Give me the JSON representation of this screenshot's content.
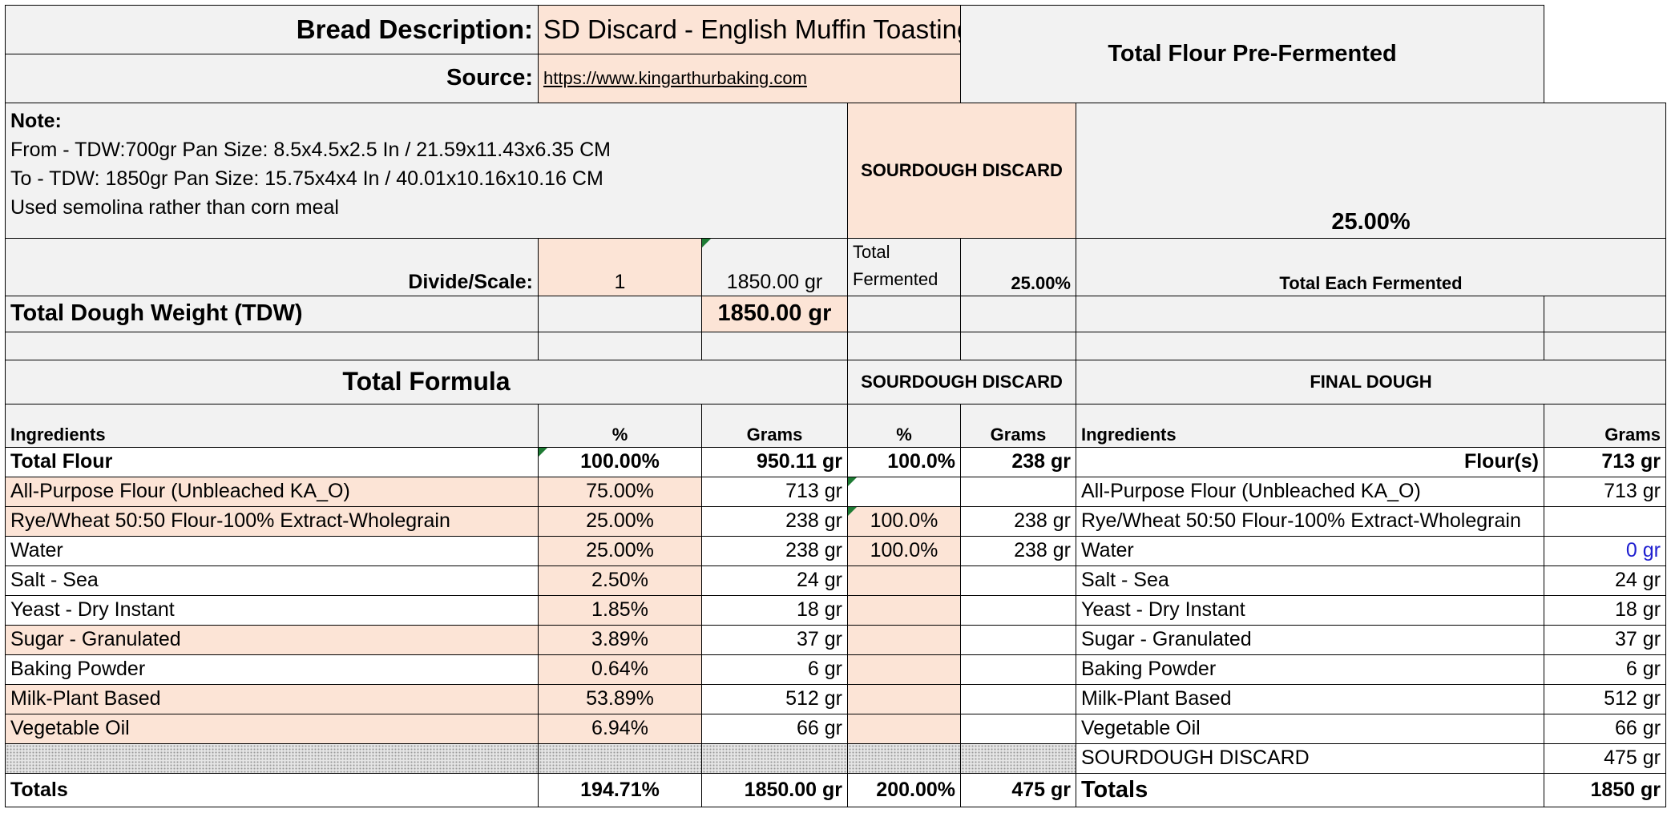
{
  "header": {
    "bread_description_label": "Bread Description:",
    "bread_description_value": "SD Discard - English Muffin Toasting Bread",
    "source_label": "Source:",
    "source_value": "https://www.kingarthurbaking.com",
    "total_flour_pre_fermented_label": "Total Flour Pre-Fermented",
    "total_flour_pre_fermented_value": "25.00%",
    "preferment_name": "SOURDOUGH DISCARD"
  },
  "note": {
    "label": "Note:",
    "lines": [
      "From - TDW:700gr   Pan Size: 8.5x4.5x2.5 In / 21.59x11.43x6.35 CM",
      "To - TDW: 1850gr   Pan Size: 15.75x4x4 In / 40.01x10.16x10.16 CM",
      "Used semolina rather than corn meal"
    ]
  },
  "scale": {
    "label": "Divide/Scale:",
    "value": "1",
    "grams": "1850.00 gr",
    "total_fermented_label_1": "Total",
    "total_fermented_label_2": "Fermented",
    "total_fermented_value": "25.00%",
    "total_each_fermented_label": "Total Each Fermented"
  },
  "tdw": {
    "label": "Total Dough Weight (TDW)",
    "value": "1850.00 gr"
  },
  "sections": {
    "total_formula": "Total Formula",
    "sourdough_discard": "SOURDOUGH DISCARD",
    "final_dough": "FINAL DOUGH"
  },
  "columns": {
    "ingredients": "Ingredients",
    "percent": "%",
    "grams": "Grams",
    "sd_percent": "%",
    "sd_grams": "Grams",
    "fd_ingredients": "Ingredients",
    "fd_grams": "Grams"
  },
  "total_flour": {
    "name": "Total Flour",
    "percent": "100.00%",
    "grams": "950.11 gr",
    "sd_percent": "100.0%",
    "sd_grams": "238 gr",
    "fd_label": "Flour(s)",
    "fd_grams": "713 gr"
  },
  "ingredients": [
    {
      "name": "All-Purpose Flour  (Unbleached KA_O)",
      "percent": "75.00%",
      "grams": "713 gr",
      "sd_percent": "",
      "sd_grams": "",
      "fd_name": "All-Purpose Flour  (Unbleached KA_O)",
      "fd_grams": "713 gr"
    },
    {
      "name": "Rye/Wheat 50:50 Flour-100% Extract-Wholegrain",
      "percent": "25.00%",
      "grams": "238 gr",
      "sd_percent": "100.0%",
      "sd_grams": "238 gr",
      "fd_name": "Rye/Wheat 50:50 Flour-100% Extract-Wholegrain",
      "fd_grams": ""
    },
    {
      "name": "Water",
      "percent": "25.00%",
      "grams": "238 gr",
      "sd_percent": "100.0%",
      "sd_grams": "238 gr",
      "fd_name": "Water",
      "fd_grams": "0 gr"
    },
    {
      "name": "Salt - Sea",
      "percent": "2.50%",
      "grams": "24 gr",
      "sd_percent": "",
      "sd_grams": "",
      "fd_name": "Salt - Sea",
      "fd_grams": "24 gr"
    },
    {
      "name": "Yeast - Dry Instant",
      "percent": "1.85%",
      "grams": "18 gr",
      "sd_percent": "",
      "sd_grams": "",
      "fd_name": "Yeast - Dry Instant",
      "fd_grams": "18 gr"
    },
    {
      "name": "Sugar - Granulated",
      "percent": "3.89%",
      "grams": "37 gr",
      "sd_percent": "",
      "sd_grams": "",
      "fd_name": "Sugar - Granulated",
      "fd_grams": "37 gr"
    },
    {
      "name": "Baking Powder",
      "percent": "0.64%",
      "grams": "6 gr",
      "sd_percent": "",
      "sd_grams": "",
      "fd_name": "Baking Powder",
      "fd_grams": "6 gr"
    },
    {
      "name": "Milk-Plant Based",
      "percent": "53.89%",
      "grams": "512 gr",
      "sd_percent": "",
      "sd_grams": "",
      "fd_name": "Milk-Plant Based",
      "fd_grams": "512 gr"
    },
    {
      "name": "Vegetable Oil",
      "percent": "6.94%",
      "grams": "66 gr",
      "sd_percent": "",
      "sd_grams": "",
      "fd_name": "Vegetable Oil",
      "fd_grams": "66 gr"
    }
  ],
  "preferment_row": {
    "fd_name": "SOURDOUGH DISCARD",
    "fd_grams": "475 gr"
  },
  "totals": {
    "label": "Totals",
    "percent": "194.71%",
    "grams": "1850.00 gr",
    "sd_percent": "200.00%",
    "sd_grams": "475 gr",
    "fd_label": "Totals",
    "fd_grams": "1850 gr"
  },
  "colors": {
    "input_fill": "#fce4d6",
    "label_fill": "#f2f2f2",
    "blue_value": "#1f1fd0",
    "comment_marker": "#1e7b34"
  }
}
